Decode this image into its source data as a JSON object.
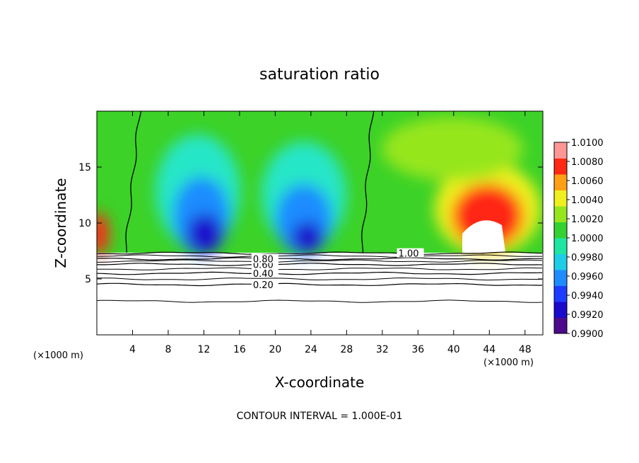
{
  "chart_data": {
    "type": "heatmap",
    "title": "saturation ratio",
    "xlabel": "X-coordinate",
    "ylabel": "Z-coordinate",
    "x_unit_left": "(×1000 m)",
    "x_unit_right": "(×1000 m)",
    "xlim": [
      0,
      50
    ],
    "ylim": [
      0,
      20
    ],
    "x_ticks": [
      4,
      8,
      12,
      16,
      20,
      24,
      28,
      32,
      36,
      40,
      44,
      48
    ],
    "x_tick_labels": [
      "4",
      "8",
      "12",
      "16",
      "20",
      "24",
      "28",
      "32",
      "36",
      "40",
      "44",
      "48"
    ],
    "y_ticks": [
      5,
      10,
      15
    ],
    "y_tick_labels": [
      "5",
      "10",
      "15"
    ],
    "colorbar": {
      "min": 0.99,
      "max": 1.01,
      "labels": [
        "1.0100",
        "1.0080",
        "1.0060",
        "1.0040",
        "1.0020",
        "1.0000",
        "0.9980",
        "0.9960",
        "0.9940",
        "0.9920",
        "0.9900"
      ],
      "colors": [
        "#4d0a8a",
        "#1a0acc",
        "#1e3cff",
        "#1e8cff",
        "#1ecde6",
        "#1ee6a0",
        "#32d232",
        "#96e61e",
        "#f0f01e",
        "#ffa014",
        "#ff2814",
        "#ff9696"
      ]
    },
    "contours": [
      {
        "level": 0.2,
        "label": "0.20",
        "z": 4.5
      },
      {
        "level": 0.4,
        "label": "0.40",
        "z": 5.5
      },
      {
        "level": 0.6,
        "label": "0.60",
        "z": 6.3
      },
      {
        "level": 0.8,
        "label": "0.80",
        "z": 6.8
      },
      {
        "level": 1.0,
        "label": "1.00",
        "z": 7.3
      }
    ],
    "unlabeled_contour_z": [
      3.0,
      5.0,
      5.9,
      6.6,
      7.05
    ],
    "contour_1_vertical_x": [
      3.6,
      29.3
    ],
    "cloud_top_z": 7.3,
    "footer": "CONTOUR INTERVAL = 1.000E-01"
  }
}
